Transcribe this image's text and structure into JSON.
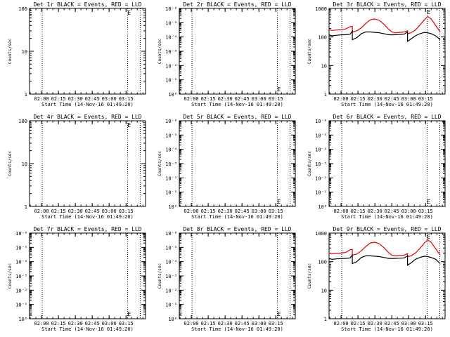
{
  "charts": [
    {
      "title": "Det 1r BLACK = Events, RED = LLD",
      "xlabel": "Start Time (14-Nov-16 01:49:20)",
      "ylabel": "Counts/sec",
      "yscale": "log",
      "yticks": [
        "1",
        "10",
        "100"
      ],
      "xticks": [
        "02:00",
        "02:15",
        "02:30",
        "02:45",
        "03:00",
        "03:15"
      ],
      "markers": [
        "E",
        "E"
      ],
      "series": []
    },
    {
      "title": "Det 2r BLACK = Events, RED = LLD",
      "xlabel": "Start Time (14-Nov-16 01:49:20)",
      "ylabel": "Counts/sec",
      "yscale": "log",
      "yticks": [
        "10⁰",
        "10⁻¹",
        "10⁻²",
        "10⁻³",
        "10⁻⁴",
        "10⁻⁵",
        "10⁻⁶"
      ],
      "xticks": [
        "02:00",
        "02:15",
        "02:30",
        "02:45",
        "03:00",
        "03:15"
      ],
      "markers": [
        "E",
        "E"
      ],
      "series": []
    },
    {
      "title": "Det 3r BLACK = Events, RED = LLD",
      "xlabel": "Start Time (14-Nov-16 01:49:20)",
      "ylabel": "Counts/sec",
      "yscale": "log",
      "yticks": [
        "1",
        "10",
        "100",
        "1000"
      ],
      "xticks": [
        "02:00",
        "02:15",
        "02:30",
        "02:45",
        "03:00",
        "03:15"
      ],
      "markers": [
        "E"
      ],
      "series": [
        {
          "color": "#e60000",
          "x": [
            "01:49",
            "01:52",
            "01:56",
            "02:00",
            "02:04",
            "02:08",
            "02:10",
            "02:10",
            "02:14",
            "02:18",
            "02:22",
            "02:26",
            "02:30",
            "02:34",
            "02:38",
            "02:42",
            "02:45",
            "02:48",
            "02:52",
            "02:56",
            "02:59",
            "02:59",
            "03:02",
            "03:06",
            "03:10",
            "03:14",
            "03:17",
            "03:20",
            "03:24",
            "03:28"
          ],
          "y": [
            180,
            170,
            175,
            180,
            190,
            230,
            235,
            150,
            165,
            210,
            300,
            400,
            430,
            380,
            280,
            190,
            150,
            140,
            145,
            150,
            165,
            130,
            140,
            175,
            260,
            400,
            520,
            430,
            250,
            150
          ]
        },
        {
          "color": "#000000",
          "x": [
            "01:49",
            "01:52",
            "01:56",
            "02:00",
            "02:04",
            "02:08",
            "02:10",
            "02:10",
            "02:14",
            "02:18",
            "02:22",
            "02:26",
            "02:30",
            "02:34",
            "02:38",
            "02:42",
            "02:45",
            "02:48",
            "02:52",
            "02:56",
            "02:59",
            "02:59",
            "03:02",
            "03:06",
            "03:10",
            "03:14",
            "03:17",
            "03:20",
            "03:24",
            "03:28"
          ],
          "y": [
            120,
            110,
            115,
            118,
            120,
            125,
            160,
            80,
            95,
            130,
            150,
            150,
            145,
            140,
            130,
            120,
            118,
            120,
            122,
            125,
            150,
            70,
            85,
            110,
            130,
            145,
            140,
            130,
            110,
            80
          ]
        }
      ]
    },
    {
      "title": "Det 4r BLACK = Events, RED = LLD",
      "xlabel": "Start Time (14-Nov-16 01:49:20)",
      "ylabel": "Counts/sec",
      "yscale": "log",
      "yticks": [
        "1",
        "10",
        "100"
      ],
      "xticks": [
        "02:00",
        "02:15",
        "02:30",
        "02:45",
        "03:00",
        "03:15"
      ],
      "markers": [
        "E",
        "E"
      ],
      "series": []
    },
    {
      "title": "Det 5r BLACK = Events, RED = LLD",
      "xlabel": "Start Time (14-Nov-16 01:49:20)",
      "ylabel": "Counts/sec",
      "yscale": "log",
      "yticks": [
        "10⁰",
        "10⁻¹",
        "10⁻²",
        "10⁻³",
        "10⁻⁴",
        "10⁻⁵",
        "10⁻⁶"
      ],
      "xticks": [
        "02:00",
        "02:15",
        "02:30",
        "02:45",
        "03:00",
        "03:15"
      ],
      "markers": [
        "E",
        "E"
      ],
      "series": []
    },
    {
      "title": "Det 6r BLACK = Events, RED = LLD",
      "xlabel": "Start Time (14-Nov-16 01:49:20)",
      "ylabel": "Counts/sec",
      "yscale": "log",
      "yticks": [
        "10⁰",
        "10⁻¹",
        "10⁻²",
        "10⁻³",
        "10⁻⁴",
        "10⁻⁵",
        "10⁻⁶"
      ],
      "xticks": [
        "02:00",
        "02:15",
        "02:30",
        "02:45",
        "03:00",
        "03:15"
      ],
      "markers": [
        "E",
        "E"
      ],
      "series": []
    },
    {
      "title": "Det 7r BLACK = Events, RED = LLD",
      "xlabel": "Start Time (14-Nov-16 01:49:20)",
      "ylabel": "Counts/sec",
      "yscale": "log",
      "yticks": [
        "10⁰",
        "10⁻¹",
        "10⁻²",
        "10⁻³",
        "10⁻⁴",
        "10⁻⁵",
        "10⁻⁶"
      ],
      "xticks": [
        "02:00",
        "02:15",
        "02:30",
        "02:45",
        "03:00",
        "03:15"
      ],
      "markers": [
        "E",
        "E"
      ],
      "series": []
    },
    {
      "title": "Det 8r BLACK = Events, RED = LLD",
      "xlabel": "Start Time (14-Nov-16 01:49:20)",
      "ylabel": "Counts/sec",
      "yscale": "log",
      "yticks": [
        "10⁰",
        "10⁻¹",
        "10⁻²",
        "10⁻³",
        "10⁻⁴",
        "10⁻⁵",
        "10⁻⁶"
      ],
      "xticks": [
        "02:00",
        "02:15",
        "02:30",
        "02:45",
        "03:00",
        "03:15"
      ],
      "markers": [
        "E",
        "E"
      ],
      "series": []
    },
    {
      "title": "Det 9r BLACK = Events, RED = LLD",
      "xlabel": "Start Time (14-Nov-16 01:49:20)",
      "ylabel": "Counts/sec",
      "yscale": "log",
      "yticks": [
        "1",
        "10",
        "100",
        "1000"
      ],
      "xticks": [
        "02:00",
        "02:15",
        "02:30",
        "02:45",
        "03:00",
        "03:15"
      ],
      "markers": [
        "E"
      ],
      "series": [
        {
          "color": "#e60000",
          "x": [
            "01:49",
            "01:52",
            "01:56",
            "02:00",
            "02:04",
            "02:08",
            "02:10",
            "02:10",
            "02:14",
            "02:18",
            "02:22",
            "02:26",
            "02:30",
            "02:34",
            "02:38",
            "02:42",
            "02:45",
            "02:48",
            "02:52",
            "02:56",
            "02:59",
            "02:59",
            "03:02",
            "03:06",
            "03:10",
            "03:14",
            "03:17",
            "03:20",
            "03:24",
            "03:28"
          ],
          "y": [
            200,
            190,
            195,
            200,
            210,
            260,
            270,
            170,
            185,
            240,
            340,
            450,
            480,
            420,
            310,
            210,
            170,
            160,
            165,
            170,
            190,
            150,
            160,
            200,
            290,
            450,
            580,
            480,
            280,
            170
          ]
        },
        {
          "color": "#000000",
          "x": [
            "01:49",
            "01:52",
            "01:56",
            "02:00",
            "02:04",
            "02:08",
            "02:10",
            "02:10",
            "02:14",
            "02:18",
            "02:22",
            "02:26",
            "02:30",
            "02:34",
            "02:38",
            "02:42",
            "02:45",
            "02:48",
            "02:52",
            "02:56",
            "02:59",
            "02:59",
            "03:02",
            "03:06",
            "03:10",
            "03:14",
            "03:17",
            "03:20",
            "03:24",
            "03:28"
          ],
          "y": [
            130,
            120,
            125,
            128,
            130,
            135,
            170,
            85,
            100,
            140,
            160,
            160,
            155,
            150,
            140,
            130,
            128,
            130,
            132,
            135,
            160,
            75,
            90,
            120,
            140,
            155,
            150,
            140,
            120,
            85
          ]
        }
      ]
    }
  ],
  "chart_data": [
    {
      "type": "line",
      "title": "Det 1r BLACK = Events, RED = LLD",
      "xlabel": "Start Time (14-Nov-16 01:49:20)",
      "ylabel": "Counts/sec",
      "ylim": [
        1,
        100
      ],
      "series": []
    },
    {
      "type": "line",
      "title": "Det 2r BLACK = Events, RED = LLD",
      "xlabel": "Start Time (14-Nov-16 01:49:20)",
      "ylabel": "Counts/sec",
      "ylim": [
        1e-06,
        1
      ],
      "series": []
    },
    {
      "type": "line",
      "title": "Det 3r BLACK = Events, RED = LLD",
      "xlabel": "Start Time (14-Nov-16 01:49:20)",
      "ylabel": "Counts/sec",
      "ylim": [
        1,
        1000
      ],
      "series": [
        {
          "color": "#e60000"
        },
        {
          "color": "#000000"
        }
      ]
    },
    {
      "type": "line",
      "title": "Det 4r BLACK = Events, RED = LLD",
      "xlabel": "Start Time (14-Nov-16 01:49:20)",
      "ylabel": "Counts/sec",
      "ylim": [
        1,
        100
      ],
      "series": []
    },
    {
      "type": "line",
      "title": "Det 5r BLACK = Events, RED = LLD",
      "xlabel": "Start Time (14-Nov-16 01:49:20)",
      "ylabel": "Counts/sec",
      "ylim": [
        1e-06,
        1
      ],
      "series": []
    },
    {
      "type": "line",
      "title": "Det 6r BLACK = Events, RED = LLD",
      "xlabel": "Start Time (14-Nov-16 01:49:20)",
      "ylabel": "Counts/sec",
      "ylim": [
        1e-06,
        1
      ],
      "series": []
    },
    {
      "type": "line",
      "title": "Det 7r BLACK = Events, RED = LLD",
      "xlabel": "Start Time (14-Nov-16 01:49:20)",
      "ylabel": "Counts/sec",
      "ylim": [
        1e-06,
        1
      ],
      "series": []
    },
    {
      "type": "line",
      "title": "Det 8r BLACK = Events, RED = LLD",
      "xlabel": "Start Time (14-Nov-16 01:49:20)",
      "ylabel": "Counts/sec",
      "ylim": [
        1e-06,
        1
      ],
      "series": []
    },
    {
      "type": "line",
      "title": "Det 9r BLACK = Events, RED = LLD",
      "xlabel": "Start Time (14-Nov-16 01:49:20)",
      "ylabel": "Counts/sec",
      "ylim": [
        1,
        1000
      ],
      "series": [
        {
          "color": "#e60000"
        },
        {
          "color": "#000000"
        }
      ]
    }
  ]
}
